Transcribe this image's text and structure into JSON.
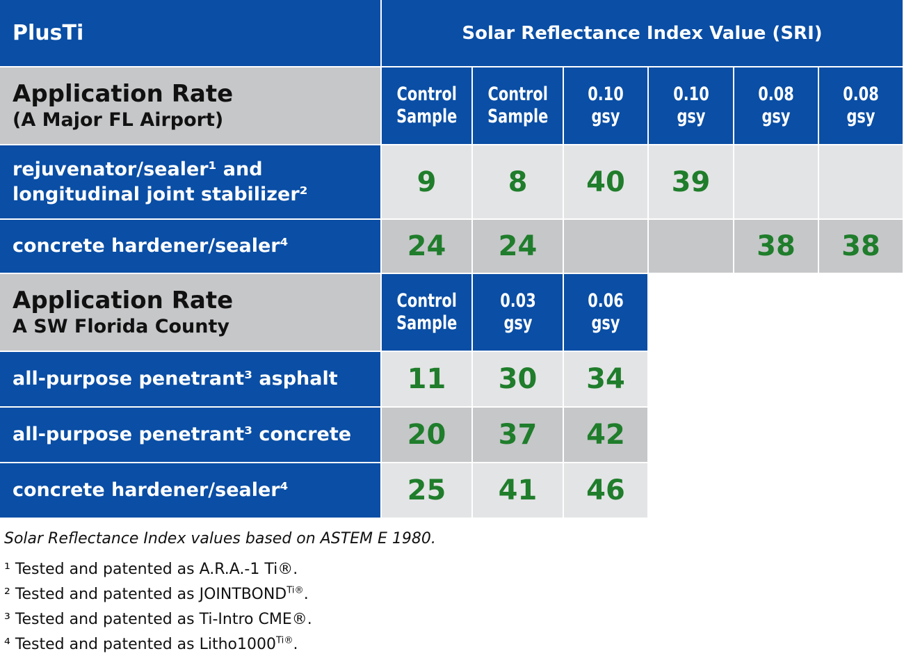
{
  "header": {
    "brand": "PlusTi",
    "sri_title": "Solar Reflectance Index Value (SRI)"
  },
  "section1": {
    "title": "Application Rate",
    "subtitle": "(A Major FL Airport)",
    "columns": [
      {
        "l1": "Control",
        "l2": "Sample"
      },
      {
        "l1": "Control",
        "l2": "Sample"
      },
      {
        "l1": "0.10",
        "l2": "gsy"
      },
      {
        "l1": "0.10",
        "l2": "gsy"
      },
      {
        "l1": "0.08",
        "l2": "gsy"
      },
      {
        "l1": "0.08",
        "l2": "gsy"
      }
    ],
    "rows": [
      {
        "line1": "rejuvenator/sealer¹ and",
        "line2": "longitudinal joint stabilizer²",
        "values": [
          "9",
          "8",
          "40",
          "39",
          "",
          ""
        ]
      },
      {
        "line1": "concrete hardener/sealer⁴",
        "line2": "",
        "values": [
          "24",
          "24",
          "",
          "",
          "38",
          "38"
        ]
      }
    ]
  },
  "section2": {
    "title": "Application Rate",
    "subtitle": "A SW Florida County",
    "columns": [
      {
        "l1": "Control",
        "l2": "Sample"
      },
      {
        "l1": "0.03",
        "l2": "gsy"
      },
      {
        "l1": "0.06",
        "l2": "gsy"
      }
    ],
    "rows": [
      {
        "label": "all-purpose penetrant³ asphalt",
        "values": [
          "11",
          "30",
          "34"
        ]
      },
      {
        "label": "all-purpose penetrant³ concrete",
        "values": [
          "20",
          "37",
          "42"
        ]
      },
      {
        "label": "concrete hardener/sealer⁴",
        "values": [
          "25",
          "41",
          "46"
        ]
      }
    ]
  },
  "notes": {
    "basis": "Solar Reflectance Index values based on ASTEM E 1980.",
    "footnotes": [
      "¹ Tested and patented as A.R.A.-1 Ti®.",
      "² Tested and patented as JOINTBONDTi®.",
      "³ Tested and patented as Ti-Intro CME®.",
      "⁴ Tested and patented as Litho1000Ti®."
    ]
  },
  "colors": {
    "blue": "#0a4ea5",
    "green_values": "#1f7d2b",
    "light_gray": "#e3e4e5",
    "dark_gray": "#c6c7c9"
  }
}
